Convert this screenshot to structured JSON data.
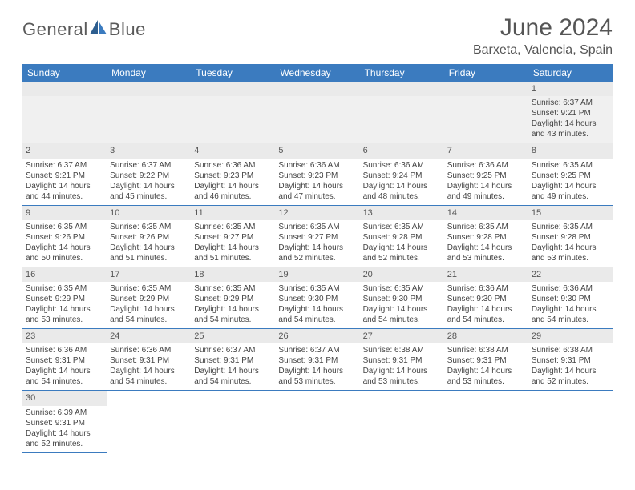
{
  "brand": {
    "part1": "General",
    "part2": "Blue"
  },
  "title": "June 2024",
  "location": "Barxeta, Valencia, Spain",
  "colors": {
    "header_bg": "#3b7bbf",
    "header_text": "#ffffff",
    "daynum_bg": "#eaeaea",
    "row_border": "#3b7bbf",
    "body_text": "#444444",
    "title_text": "#555555",
    "page_bg": "#ffffff"
  },
  "weekdays": [
    "Sunday",
    "Monday",
    "Tuesday",
    "Wednesday",
    "Thursday",
    "Friday",
    "Saturday"
  ],
  "layout": {
    "first_weekday_index": 6,
    "days_in_month": 30
  },
  "days": {
    "1": {
      "sunrise": "Sunrise: 6:37 AM",
      "sunset": "Sunset: 9:21 PM",
      "daylight1": "Daylight: 14 hours",
      "daylight2": "and 43 minutes."
    },
    "2": {
      "sunrise": "Sunrise: 6:37 AM",
      "sunset": "Sunset: 9:21 PM",
      "daylight1": "Daylight: 14 hours",
      "daylight2": "and 44 minutes."
    },
    "3": {
      "sunrise": "Sunrise: 6:37 AM",
      "sunset": "Sunset: 9:22 PM",
      "daylight1": "Daylight: 14 hours",
      "daylight2": "and 45 minutes."
    },
    "4": {
      "sunrise": "Sunrise: 6:36 AM",
      "sunset": "Sunset: 9:23 PM",
      "daylight1": "Daylight: 14 hours",
      "daylight2": "and 46 minutes."
    },
    "5": {
      "sunrise": "Sunrise: 6:36 AM",
      "sunset": "Sunset: 9:23 PM",
      "daylight1": "Daylight: 14 hours",
      "daylight2": "and 47 minutes."
    },
    "6": {
      "sunrise": "Sunrise: 6:36 AM",
      "sunset": "Sunset: 9:24 PM",
      "daylight1": "Daylight: 14 hours",
      "daylight2": "and 48 minutes."
    },
    "7": {
      "sunrise": "Sunrise: 6:36 AM",
      "sunset": "Sunset: 9:25 PM",
      "daylight1": "Daylight: 14 hours",
      "daylight2": "and 49 minutes."
    },
    "8": {
      "sunrise": "Sunrise: 6:35 AM",
      "sunset": "Sunset: 9:25 PM",
      "daylight1": "Daylight: 14 hours",
      "daylight2": "and 49 minutes."
    },
    "9": {
      "sunrise": "Sunrise: 6:35 AM",
      "sunset": "Sunset: 9:26 PM",
      "daylight1": "Daylight: 14 hours",
      "daylight2": "and 50 minutes."
    },
    "10": {
      "sunrise": "Sunrise: 6:35 AM",
      "sunset": "Sunset: 9:26 PM",
      "daylight1": "Daylight: 14 hours",
      "daylight2": "and 51 minutes."
    },
    "11": {
      "sunrise": "Sunrise: 6:35 AM",
      "sunset": "Sunset: 9:27 PM",
      "daylight1": "Daylight: 14 hours",
      "daylight2": "and 51 minutes."
    },
    "12": {
      "sunrise": "Sunrise: 6:35 AM",
      "sunset": "Sunset: 9:27 PM",
      "daylight1": "Daylight: 14 hours",
      "daylight2": "and 52 minutes."
    },
    "13": {
      "sunrise": "Sunrise: 6:35 AM",
      "sunset": "Sunset: 9:28 PM",
      "daylight1": "Daylight: 14 hours",
      "daylight2": "and 52 minutes."
    },
    "14": {
      "sunrise": "Sunrise: 6:35 AM",
      "sunset": "Sunset: 9:28 PM",
      "daylight1": "Daylight: 14 hours",
      "daylight2": "and 53 minutes."
    },
    "15": {
      "sunrise": "Sunrise: 6:35 AM",
      "sunset": "Sunset: 9:28 PM",
      "daylight1": "Daylight: 14 hours",
      "daylight2": "and 53 minutes."
    },
    "16": {
      "sunrise": "Sunrise: 6:35 AM",
      "sunset": "Sunset: 9:29 PM",
      "daylight1": "Daylight: 14 hours",
      "daylight2": "and 53 minutes."
    },
    "17": {
      "sunrise": "Sunrise: 6:35 AM",
      "sunset": "Sunset: 9:29 PM",
      "daylight1": "Daylight: 14 hours",
      "daylight2": "and 54 minutes."
    },
    "18": {
      "sunrise": "Sunrise: 6:35 AM",
      "sunset": "Sunset: 9:29 PM",
      "daylight1": "Daylight: 14 hours",
      "daylight2": "and 54 minutes."
    },
    "19": {
      "sunrise": "Sunrise: 6:35 AM",
      "sunset": "Sunset: 9:30 PM",
      "daylight1": "Daylight: 14 hours",
      "daylight2": "and 54 minutes."
    },
    "20": {
      "sunrise": "Sunrise: 6:35 AM",
      "sunset": "Sunset: 9:30 PM",
      "daylight1": "Daylight: 14 hours",
      "daylight2": "and 54 minutes."
    },
    "21": {
      "sunrise": "Sunrise: 6:36 AM",
      "sunset": "Sunset: 9:30 PM",
      "daylight1": "Daylight: 14 hours",
      "daylight2": "and 54 minutes."
    },
    "22": {
      "sunrise": "Sunrise: 6:36 AM",
      "sunset": "Sunset: 9:30 PM",
      "daylight1": "Daylight: 14 hours",
      "daylight2": "and 54 minutes."
    },
    "23": {
      "sunrise": "Sunrise: 6:36 AM",
      "sunset": "Sunset: 9:31 PM",
      "daylight1": "Daylight: 14 hours",
      "daylight2": "and 54 minutes."
    },
    "24": {
      "sunrise": "Sunrise: 6:36 AM",
      "sunset": "Sunset: 9:31 PM",
      "daylight1": "Daylight: 14 hours",
      "daylight2": "and 54 minutes."
    },
    "25": {
      "sunrise": "Sunrise: 6:37 AM",
      "sunset": "Sunset: 9:31 PM",
      "daylight1": "Daylight: 14 hours",
      "daylight2": "and 54 minutes."
    },
    "26": {
      "sunrise": "Sunrise: 6:37 AM",
      "sunset": "Sunset: 9:31 PM",
      "daylight1": "Daylight: 14 hours",
      "daylight2": "and 53 minutes."
    },
    "27": {
      "sunrise": "Sunrise: 6:38 AM",
      "sunset": "Sunset: 9:31 PM",
      "daylight1": "Daylight: 14 hours",
      "daylight2": "and 53 minutes."
    },
    "28": {
      "sunrise": "Sunrise: 6:38 AM",
      "sunset": "Sunset: 9:31 PM",
      "daylight1": "Daylight: 14 hours",
      "daylight2": "and 53 minutes."
    },
    "29": {
      "sunrise": "Sunrise: 6:38 AM",
      "sunset": "Sunset: 9:31 PM",
      "daylight1": "Daylight: 14 hours",
      "daylight2": "and 52 minutes."
    },
    "30": {
      "sunrise": "Sunrise: 6:39 AM",
      "sunset": "Sunset: 9:31 PM",
      "daylight1": "Daylight: 14 hours",
      "daylight2": "and 52 minutes."
    }
  }
}
